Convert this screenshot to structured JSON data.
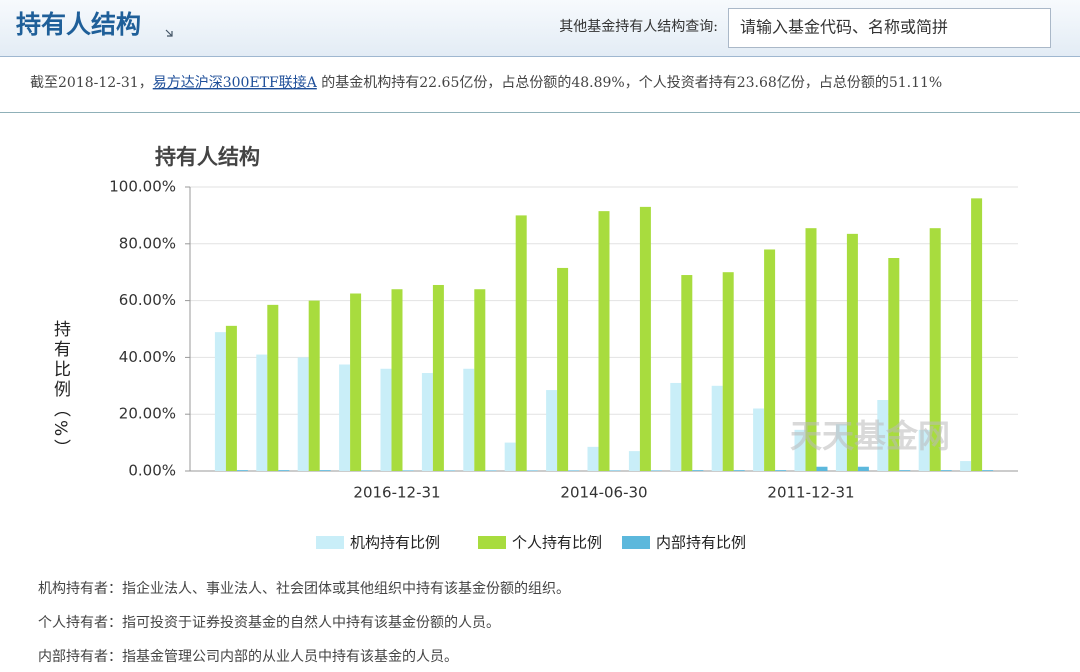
{
  "header": {
    "title": "持有人结构"
  },
  "search": {
    "label": "其他基金持有人结构查询:",
    "placeholder": "请输入基金代码、名称或简拼"
  },
  "summary": {
    "prefix": "截至2018-12-31，",
    "fund_link": "易方达沪深300ETF联接A",
    "text": " 的基金机构持有22.65亿份，占总份额的48.89%，个人投资者持有23.68亿份，占总份额的51.11%"
  },
  "chart_data": {
    "type": "bar",
    "title": "持有人结构",
    "y_label": "持有比例（%）",
    "watermark": "天天基金网",
    "categories": [
      null,
      null,
      null,
      null,
      "2016-12-31",
      null,
      null,
      null,
      null,
      "2014-06-30",
      null,
      null,
      null,
      null,
      "2011-12-31",
      null,
      null,
      null,
      null
    ],
    "series": [
      {
        "name": "机构持有比例",
        "color": "#c9eef8",
        "values": [
          48.89,
          41,
          40,
          37.5,
          36,
          34.5,
          36,
          10,
          28.5,
          8.5,
          7,
          31,
          30,
          22,
          14.5,
          16.5,
          25,
          14.5,
          3.5
        ]
      },
      {
        "name": "个人持有比例",
        "color": "#a8dc3e",
        "values": [
          51.11,
          58.5,
          60,
          62.5,
          64,
          65.5,
          64,
          90,
          71.5,
          91.5,
          93,
          69,
          70,
          78,
          85.5,
          83.5,
          75,
          85.5,
          96
        ]
      },
      {
        "name": "内部持有比例",
        "color": "#5cb8dc",
        "values": [
          0.3,
          0.3,
          0.3,
          0.2,
          0.2,
          0.2,
          0.2,
          0.2,
          0.2,
          0.2,
          0.2,
          0.3,
          0.3,
          0.3,
          1.5,
          1.5,
          0.3,
          0.3,
          0.3
        ]
      }
    ],
    "ylim": [
      0,
      100
    ],
    "yticks": [
      {
        "value": 0,
        "label": "0.00%"
      },
      {
        "value": 20,
        "label": "20.00%"
      },
      {
        "value": 40,
        "label": "40.00%"
      },
      {
        "value": 60,
        "label": "60.00%"
      },
      {
        "value": 80,
        "label": "80.00%"
      },
      {
        "value": 100,
        "label": "100.00%"
      }
    ],
    "grid": true
  },
  "definitions": [
    "机构持有者：指企业法人、事业法人、社会团体或其他组织中持有该基金份额的组织。",
    "个人持有者：指可投资于证券投资基金的自然人中持有该基金份额的人员。",
    "内部持有者：指基金管理公司内部的从业人员中持有该基金的人员。"
  ]
}
